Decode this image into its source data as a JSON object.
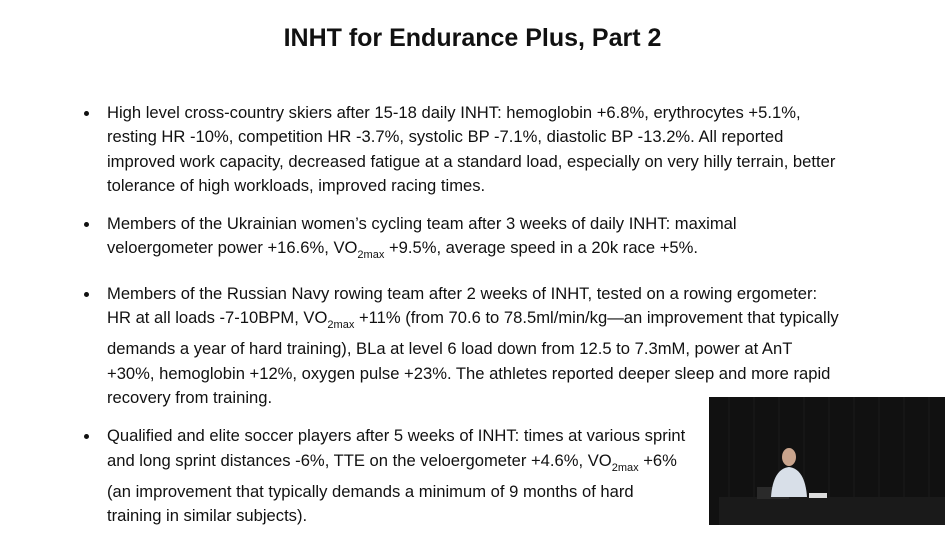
{
  "title": "INHT for Endurance Plus, Part 2",
  "bullets": [
    [
      "High level cross-country skiers after 15-18 daily INHT: hemoglobin +6.8%, erythrocytes +5.1%, resting HR -10%, competition HR -3.7%, systolic BP -7.1%, diastolic BP -13.2%. All reported improved work capacity, decreased fatigue at a standard load, especially on very hilly terrain, better tolerance of high workloads, improved racing times."
    ],
    [
      "Members of the Ukrainian women’s cycling team after 3 weeks of daily INHT: maximal veloergometer power +16.6%, VO",
      "2max",
      " +9.5%, average speed in a 20k race +5%."
    ],
    [
      "Members of the Russian Navy rowing team after 2 weeks of INHT, tested on a rowing ergometer: HR at all loads -7-10BPM, VO",
      "2max",
      " +11% (from 70.6 to 78.5ml/min/kg—an improvement that typically demands a year of hard training), BLa at level 6 load down from 12.5 to 7.3mM, power at AnT +30%, hemoglobin +12%, oxygen pulse +23%. The athletes reported deeper sleep and more rapid recovery from training."
    ],
    [
      "Qualified and elite soccer players after 5 weeks of INHT: times at various sprint and long sprint distances -6%, TTE on the veloergometer +4.6%, VO",
      "2max",
      " +6% (an improvement that typically demands a minimum of 9 months of hard training in similar subjects)."
    ]
  ]
}
